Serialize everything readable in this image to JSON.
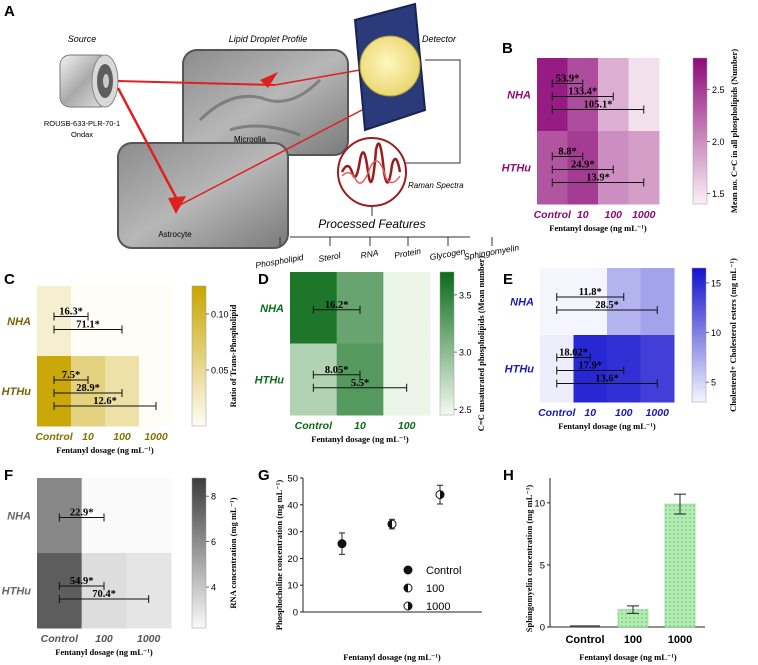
{
  "figure": {
    "panel_labels": {
      "a": "A",
      "b": "B",
      "c": "C",
      "d": "D",
      "e": "E",
      "f": "F",
      "g": "G",
      "h": "H"
    },
    "schematic": {
      "source_title": "Source",
      "source_model": "ROUSB-633-PLR-70-1",
      "source_vendor": "Ondax",
      "lipid_title": "Lipid Droplet Profile",
      "microglia": "Microglia",
      "astrocyte": "Astrocyte",
      "detector": "Detector",
      "raman": "Raman Spectra",
      "processed": "Processed Features",
      "features": [
        "Phospholipid",
        "Sterol",
        "RNA",
        "Protein",
        "Glycogen",
        "Sphingomyelin"
      ]
    },
    "colors": {
      "b_dark": "#8e0b79",
      "b_mid": "#c253a9",
      "b_light": "#eccde2",
      "c_dark": "#c9a400",
      "c_light": "#fdf6d4",
      "d_dark": "#0b6b19",
      "d_light": "#cfe8c8",
      "e_dark": "#1717d0",
      "e_light": "#dfe1f8",
      "f_dark": "#4a4a4a",
      "f_light": "#f0f0f0",
      "h_bar": "#9ee29e",
      "laser": "#e02020"
    }
  },
  "chart_data": [
    {
      "panel": "B",
      "type": "heatmap",
      "rows": [
        "NHA",
        "HTHu"
      ],
      "columns": [
        "Control",
        "10",
        "100",
        "1000"
      ],
      "values": [
        [
          2.7,
          2.4,
          1.8,
          1.5
        ],
        [
          2.35,
          2.5,
          2.0,
          1.9
        ]
      ],
      "xlabel": "Fentanyl dosage (ng mL⁻¹)",
      "colorbar_label": "Mean no. C=C in all phospholipids (Number)",
      "colorbar_ticks": [
        "1.5",
        "2.0",
        "2.5"
      ],
      "colorbar_range": [
        1.4,
        2.8
      ],
      "annotations": [
        {
          "row": "NHA",
          "text": "53.9*",
          "from": "Control",
          "to": "10"
        },
        {
          "row": "NHA",
          "text": "133.4*",
          "from": "Control",
          "to": "100"
        },
        {
          "row": "NHA",
          "text": "105.1*",
          "from": "Control",
          "to": "1000"
        },
        {
          "row": "HTHu",
          "text": "8.8*",
          "from": "Control",
          "to": "10"
        },
        {
          "row": "HTHu",
          "text": "24.9*",
          "from": "Control",
          "to": "100"
        },
        {
          "row": "HTHu",
          "text": "13.9*",
          "from": "Control",
          "to": "1000"
        }
      ]
    },
    {
      "panel": "C",
      "type": "heatmap",
      "rows": [
        "NHA",
        "HTHu"
      ],
      "columns": [
        "Control",
        "10",
        "100",
        "1000"
      ],
      "values": [
        [
          0.02,
          0.0,
          0.0,
          0.0
        ],
        [
          0.12,
          0.06,
          0.04,
          0.0
        ]
      ],
      "xlabel": "Fentanyl dosage (ng mL⁻¹)",
      "colorbar_label": "Ratio of Trans-Phospholipid",
      "colorbar_ticks": [
        "0.05",
        "0.10"
      ],
      "colorbar_range": [
        0.0,
        0.125
      ],
      "annotations": [
        {
          "row": "NHA",
          "text": "16.3*",
          "from": "Control",
          "to": "10"
        },
        {
          "row": "NHA",
          "text": "71.1*",
          "from": "Control",
          "to": "100"
        },
        {
          "row": "HTHu",
          "text": "7.5*",
          "from": "Control",
          "to": "10"
        },
        {
          "row": "HTHu",
          "text": "28.9*",
          "from": "Control",
          "to": "100"
        },
        {
          "row": "HTHu",
          "text": "12.6*",
          "from": "Control",
          "to": "1000"
        }
      ]
    },
    {
      "panel": "D",
      "type": "heatmap",
      "rows": [
        "NHA",
        "HTHu"
      ],
      "columns": [
        "Control",
        "10",
        "100"
      ],
      "values": [
        [
          3.6,
          3.2,
          2.5
        ],
        [
          2.8,
          3.3,
          2.5
        ]
      ],
      "xlabel": "Fentanyl dosage (ng mL⁻¹)",
      "colorbar_label": "C=C unsaturated phospholipids (Mean number)",
      "colorbar_ticks": [
        "2.5",
        "3.0",
        "3.5"
      ],
      "colorbar_range": [
        2.45,
        3.7
      ],
      "annotations": [
        {
          "row": "NHA",
          "text": "16.2*",
          "from": "Control",
          "to": "10"
        },
        {
          "row": "HTHu",
          "text": "8.05*",
          "from": "Control",
          "to": "10"
        },
        {
          "row": "HTHu",
          "text": "5.5*",
          "from": "Control",
          "to": "100"
        }
      ]
    },
    {
      "panel": "E",
      "type": "heatmap",
      "rows": [
        "NHA",
        "HTHu"
      ],
      "columns": [
        "Control",
        "10",
        "100",
        "1000"
      ],
      "values": [
        [
          3.0,
          3.0,
          7.0,
          8.0
        ],
        [
          3.5,
          15.5,
          15.0,
          14.0
        ]
      ],
      "xlabel": "Fentanyl dosage (ng mL⁻¹)",
      "colorbar_label": "Cholesterol+ Cholesterol esters (mg mL⁻¹)",
      "colorbar_ticks": [
        "5",
        "10",
        "15"
      ],
      "colorbar_range": [
        3.0,
        16.5
      ],
      "annotations": [
        {
          "row": "NHA",
          "text": "11.8*",
          "from": "Control",
          "to": "100"
        },
        {
          "row": "NHA",
          "text": "28.5*",
          "from": "Control",
          "to": "1000"
        },
        {
          "row": "HTHu",
          "text": "18.02*",
          "from": "Control",
          "to": "10"
        },
        {
          "row": "HTHu",
          "text": "17.9*",
          "from": "Control",
          "to": "100"
        },
        {
          "row": "HTHu",
          "text": "13.6*",
          "from": "Control",
          "to": "1000"
        }
      ]
    },
    {
      "panel": "F",
      "type": "heatmap",
      "rows": [
        "NHA",
        "HTHu"
      ],
      "columns": [
        "Control",
        "100",
        "1000"
      ],
      "values": [
        [
          6.5,
          2.2,
          2.2
        ],
        [
          8.1,
          3.3,
          3.0
        ]
      ],
      "xlabel": "Fentanyl dosage (ng mL⁻¹)",
      "colorbar_label": "RNA concentration (mg mL⁻¹)",
      "colorbar_ticks": [
        "4",
        "6",
        "8"
      ],
      "colorbar_range": [
        2.2,
        8.8
      ],
      "annotations": [
        {
          "row": "NHA",
          "text": "22.9*",
          "from": "Control",
          "to": "100"
        },
        {
          "row": "HTHu",
          "text": "54.9*",
          "from": "Control",
          "to": "100"
        },
        {
          "row": "HTHu",
          "text": "70.4*",
          "from": "Control",
          "to": "1000"
        }
      ]
    },
    {
      "panel": "G",
      "type": "scatter",
      "xlabel": "Fentanyl dosage (ng mL⁻¹)",
      "ylabel": "Phosphocholine concentration (mg mL⁻¹)",
      "ylim": [
        0,
        50
      ],
      "yticks": [
        0,
        10,
        20,
        30,
        40,
        50
      ],
      "series": [
        {
          "name": "Control",
          "value": 25.5,
          "error": 4.0,
          "marker": "filled"
        },
        {
          "name": "100",
          "value": 32.8,
          "error": 1.8,
          "marker": "half-left"
        },
        {
          "name": "1000",
          "value": 43.8,
          "error": 3.5,
          "marker": "half-right"
        }
      ],
      "legend": "center-right"
    },
    {
      "panel": "H",
      "type": "bar",
      "categories": [
        "Control",
        "100",
        "1000"
      ],
      "values": [
        0.0,
        1.4,
        9.9
      ],
      "errors": [
        0.0,
        0.3,
        0.8
      ],
      "xlabel": "Fentanyl dosage (ng mL⁻¹)",
      "ylabel": "Sphingomyelin concentration (mg mL⁻¹)",
      "ylim": [
        0,
        12
      ],
      "yticks": [
        0,
        5,
        10
      ]
    }
  ]
}
